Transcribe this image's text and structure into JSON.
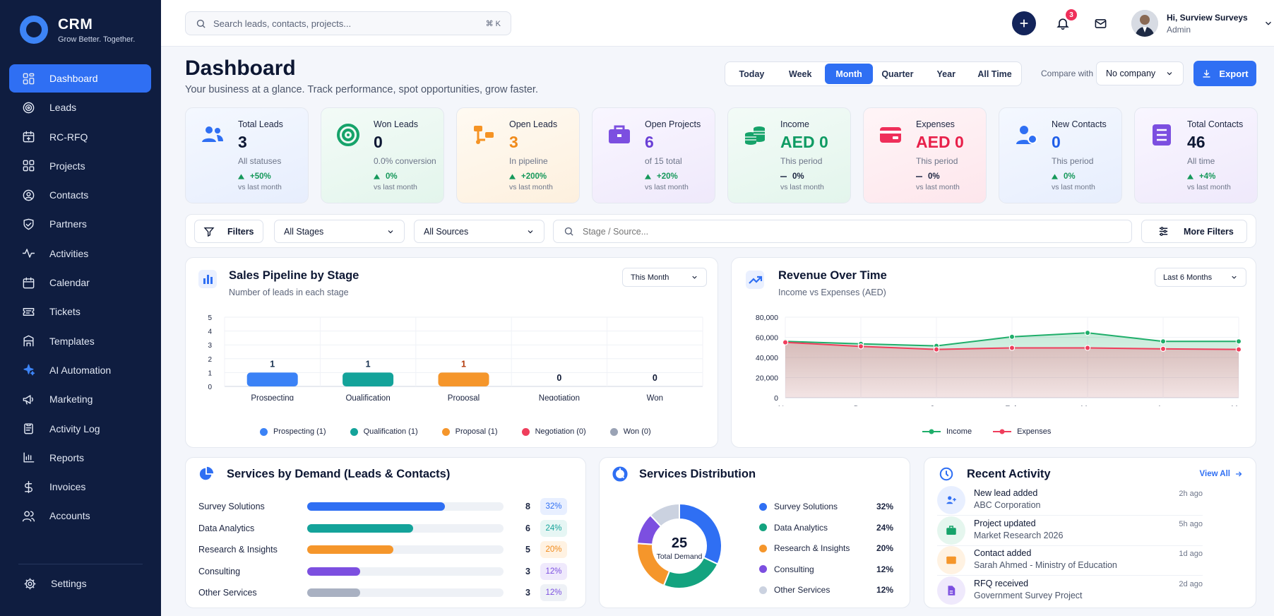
{
  "brand": {
    "title": "CRM",
    "tagline": "Grow Better. Together."
  },
  "nav": [
    {
      "label": "Dashboard",
      "icon": "dashboard-icon",
      "active": true
    },
    {
      "label": "Leads",
      "icon": "target-icon"
    },
    {
      "label": "RC-RFQ",
      "icon": "calendar-plus-icon"
    },
    {
      "label": "Projects",
      "icon": "grid-icon"
    },
    {
      "label": "Contacts",
      "icon": "user-circle-icon"
    },
    {
      "label": "Partners",
      "icon": "handshake-icon"
    },
    {
      "label": "Activities",
      "icon": "pulse-icon"
    },
    {
      "label": "Calendar",
      "icon": "calendar-icon"
    },
    {
      "label": "Tickets",
      "icon": "ticket-icon"
    },
    {
      "label": "Templates",
      "icon": "template-icon"
    },
    {
      "label": "AI Automation",
      "icon": "sparkle-icon"
    },
    {
      "label": "Marketing",
      "icon": "megaphone-icon"
    },
    {
      "label": "Activity Log",
      "icon": "clipboard-icon"
    },
    {
      "label": "Reports",
      "icon": "bar-chart-icon"
    },
    {
      "label": "Invoices",
      "icon": "dollar-icon"
    },
    {
      "label": "Accounts",
      "icon": "users-icon"
    }
  ],
  "settings_label": "Settings",
  "search": {
    "placeholder": "Search leads, contacts, projects...",
    "shortcut": "⌘ K"
  },
  "notifications": {
    "count": "3"
  },
  "user": {
    "greeting": "Hi, Surview Surveys",
    "role": "Admin"
  },
  "header": {
    "title": "Dashboard",
    "subtitle": "Your business at a glance. Track performance, spot opportunities, grow faster.",
    "ranges": [
      "Today",
      "Week",
      "Month",
      "Quarter",
      "Year",
      "All Time"
    ],
    "active_range": "Month",
    "compare_label": "Compare with",
    "compare_value": "No company",
    "export_label": "Export"
  },
  "kpis": [
    {
      "label": "Total Leads",
      "value": "3",
      "sub": "All statuses",
      "delta": "+50%",
      "vs": "vs last month",
      "color": "#2f6ff3",
      "value_color": "#0d1733",
      "trend": "up"
    },
    {
      "label": "Won Leads",
      "value": "0",
      "sub": "0.0% conversion",
      "delta": "0%",
      "vs": "vs last month",
      "color": "#16a36a",
      "value_color": "#0d1733",
      "trend": "up"
    },
    {
      "label": "Open Leads",
      "value": "3",
      "sub": "In pipeline",
      "delta": "+200%",
      "vs": "vs last month",
      "color": "#f59324",
      "value_color": "#f08a1a",
      "trend": "up"
    },
    {
      "label": "Open Projects",
      "value": "6",
      "sub": "of 15 total",
      "delta": "+20%",
      "vs": "vs last month",
      "color": "#7c4fe0",
      "value_color": "#6a3fd6",
      "trend": "up"
    },
    {
      "label": "Income",
      "value": "AED 0",
      "sub": "This period",
      "delta": "0%",
      "vs": "vs last month",
      "color": "#16a36a",
      "value_color": "#0f9b63",
      "trend": "flat"
    },
    {
      "label": "Expenses",
      "value": "AED 0",
      "sub": "This period",
      "delta": "0%",
      "vs": "vs last month",
      "color": "#ef2f5a",
      "value_color": "#e8204a",
      "trend": "flat"
    },
    {
      "label": "New Contacts",
      "value": "0",
      "sub": "This period",
      "delta": "0%",
      "vs": "vs last month",
      "color": "#2f6ff3",
      "value_color": "#1f5ee8",
      "trend": "up"
    },
    {
      "label": "Total Contacts",
      "value": "46",
      "sub": "All time",
      "delta": "+4%",
      "vs": "vs last month",
      "color": "#7c4fe0",
      "value_color": "#0d1733",
      "trend": "up"
    }
  ],
  "filters": {
    "filters_label": "Filters",
    "stage_value": "All Stages",
    "source_value": "All Sources",
    "search_placeholder": "Stage / Source...",
    "more_label": "More Filters"
  },
  "pipeline": {
    "title": "Sales Pipeline by Stage",
    "subtitle": "Number of leads in each stage",
    "period": "This Month",
    "legend": [
      "Prospecting (1)",
      "Qualification (1)",
      "Proposal (1)",
      "Negotiation (0)",
      "Won (0)"
    ]
  },
  "revenue": {
    "title": "Revenue Over Time",
    "subtitle": "Income vs Expenses (AED)",
    "period": "Last 6 Months",
    "legend": [
      "Income",
      "Expenses"
    ]
  },
  "chart_data": [
    {
      "type": "bar",
      "categories": [
        "Prospecting",
        "Qualification",
        "Proposal",
        "Negotiation",
        "Won"
      ],
      "values": [
        1,
        1,
        1,
        0,
        0
      ],
      "colors": [
        "#3b82f6",
        "#14a39a",
        "#f5962b",
        "#ef3e5c",
        "#9aa3b5"
      ],
      "ylim": [
        0,
        5
      ],
      "yticks": [
        "0",
        "1",
        "2",
        "3",
        "4",
        "5"
      ],
      "grid": true
    },
    {
      "type": "area",
      "x": [
        "Nov",
        "Dec",
        "Jan",
        "Feb",
        "Mar",
        "Apr",
        "May"
      ],
      "series": [
        {
          "name": "Income",
          "color": "#1fae6a",
          "values": [
            56000,
            53500,
            51500,
            60500,
            64500,
            56000,
            56000
          ]
        },
        {
          "name": "Expenses",
          "color": "#ef3e5c",
          "values": [
            55000,
            51000,
            48000,
            49500,
            49500,
            48500,
            48000
          ]
        }
      ],
      "ylim": [
        0,
        80000
      ],
      "yticks": [
        "0",
        "20,000",
        "40,000",
        "60,000",
        "80,000"
      ],
      "grid": true
    },
    {
      "type": "pie",
      "center_value": "25",
      "center_label": "Total Demand",
      "labels": [
        "Survey Solutions",
        "Data Analytics",
        "Research & Insights",
        "Consulting",
        "Other Services"
      ],
      "values": [
        32,
        24,
        20,
        12,
        12
      ],
      "colors": [
        "#2f6ff3",
        "#14a37f",
        "#f5962b",
        "#7c4fe0",
        "#cbd2e0"
      ]
    }
  ],
  "services": {
    "title": "Services by Demand (Leads & Contacts)",
    "rows": [
      {
        "name": "Survey Solutions",
        "count": "8",
        "pct": "32%",
        "fill": 0.7,
        "color": "#2f6ff3",
        "bg": "#e8efff",
        "text": "#2f6ff3"
      },
      {
        "name": "Data Analytics",
        "count": "6",
        "pct": "24%",
        "fill": 0.54,
        "color": "#14a39a",
        "bg": "#e6f6f4",
        "text": "#14a39a"
      },
      {
        "name": "Research & Insights",
        "count": "5",
        "pct": "20%",
        "fill": 0.44,
        "color": "#f5962b",
        "bg": "#fff2e2",
        "text": "#f08a1a"
      },
      {
        "name": "Consulting",
        "count": "3",
        "pct": "12%",
        "fill": 0.27,
        "color": "#7c4fe0",
        "bg": "#efe9fc",
        "text": "#7c4fe0"
      },
      {
        "name": "Other Services",
        "count": "3",
        "pct": "12%",
        "fill": 0.27,
        "color": "#a9b1c2",
        "bg": "#eef1f6",
        "text": "#7c4fe0"
      }
    ]
  },
  "distribution": {
    "title": "Services Distribution"
  },
  "activity": {
    "title": "Recent Activity",
    "view_all": "View All",
    "items": [
      {
        "title": "New lead added",
        "sub": "ABC Corporation",
        "time": "2h ago",
        "color": "#2f6ff3",
        "bg": "#e8efff",
        "icon": "user-plus-icon"
      },
      {
        "title": "Project updated",
        "sub": "Market Research 2026",
        "time": "5h ago",
        "color": "#16a36a",
        "bg": "#e5f6ee",
        "icon": "briefcase-icon"
      },
      {
        "title": "Contact added",
        "sub": "Sarah Ahmed - Ministry of Education",
        "time": "1d ago",
        "color": "#f5962b",
        "bg": "#fff2e2",
        "icon": "envelope-icon"
      },
      {
        "title": "RFQ received",
        "sub": "Government Survey Project",
        "time": "2d ago",
        "color": "#7c4fe0",
        "bg": "#efe9fc",
        "icon": "document-icon"
      }
    ]
  }
}
